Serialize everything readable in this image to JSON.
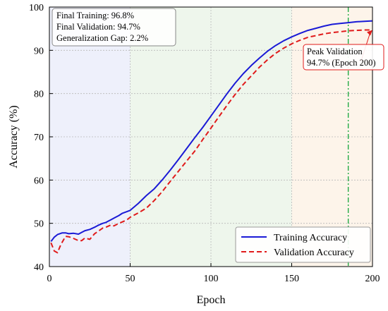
{
  "chart_data": {
    "type": "line",
    "xlabel": "Epoch",
    "ylabel": "Accuracy (%)",
    "xlim": [
      0,
      200
    ],
    "ylim": [
      40,
      100
    ],
    "xticks": [
      0,
      50,
      100,
      150,
      200
    ],
    "yticks": [
      40,
      50,
      60,
      70,
      80,
      90,
      100
    ],
    "grid": true,
    "legend_position": "bottom-right",
    "phases": [
      {
        "from": 0,
        "to": 50,
        "color": "#eef0fb"
      },
      {
        "from": 50,
        "to": 150,
        "color": "#eef6ec"
      },
      {
        "from": 150,
        "to": 200,
        "color": "#fdf4ea"
      }
    ],
    "vline": {
      "x": 185,
      "color": "#22aa44"
    },
    "series": [
      {
        "name": "Training Accuracy",
        "color": "#1a1ad6",
        "dash": "solid",
        "x": [
          1,
          3,
          5,
          8,
          10,
          12,
          15,
          18,
          20,
          22,
          25,
          28,
          30,
          33,
          35,
          38,
          40,
          43,
          45,
          48,
          50,
          55,
          60,
          65,
          70,
          75,
          80,
          85,
          90,
          95,
          100,
          105,
          110,
          115,
          120,
          125,
          130,
          135,
          140,
          145,
          150,
          155,
          160,
          165,
          170,
          175,
          180,
          185,
          190,
          195,
          200
        ],
        "values": [
          45.8,
          46.8,
          47.4,
          47.8,
          47.8,
          47.6,
          47.7,
          47.5,
          47.9,
          48.3,
          48.6,
          49.1,
          49.5,
          50.0,
          50.2,
          50.8,
          51.2,
          51.8,
          52.3,
          52.7,
          53.0,
          54.6,
          56.4,
          58.0,
          60.1,
          62.4,
          64.8,
          67.3,
          69.8,
          72.2,
          74.8,
          77.4,
          80.0,
          82.4,
          84.6,
          86.5,
          88.2,
          89.8,
          91.1,
          92.2,
          93.1,
          93.9,
          94.6,
          95.1,
          95.6,
          96.0,
          96.2,
          96.4,
          96.6,
          96.7,
          96.8
        ]
      },
      {
        "name": "Validation Accuracy",
        "color": "#e01b1b",
        "dash": "dashed",
        "x": [
          1,
          3,
          5,
          7,
          10,
          12,
          15,
          18,
          20,
          22,
          25,
          28,
          30,
          33,
          35,
          38,
          40,
          43,
          45,
          48,
          50,
          55,
          60,
          65,
          70,
          75,
          80,
          85,
          90,
          95,
          100,
          105,
          110,
          115,
          120,
          125,
          130,
          135,
          140,
          145,
          150,
          155,
          160,
          165,
          170,
          175,
          180,
          185,
          190,
          195,
          200
        ],
        "values": [
          45.5,
          43.6,
          43.2,
          45.0,
          47.0,
          46.9,
          46.5,
          46.0,
          46.0,
          46.6,
          46.3,
          47.6,
          48.1,
          48.9,
          49.1,
          49.6,
          49.4,
          50.0,
          50.3,
          50.8,
          51.4,
          52.4,
          53.5,
          55.3,
          57.4,
          59.8,
          62.1,
          64.4,
          66.7,
          69.4,
          72.0,
          74.7,
          77.3,
          79.8,
          82.1,
          84.1,
          86.1,
          87.8,
          89.3,
          90.5,
          91.5,
          92.3,
          93.0,
          93.4,
          93.8,
          94.1,
          94.3,
          94.5,
          94.6,
          94.7,
          94.7
        ]
      }
    ],
    "stats_box": [
      "Final Training: 96.8%",
      "Final Validation: 94.7%",
      "Generalization Gap: 2.2%"
    ],
    "peak_annotation": {
      "lines": [
        "Peak Validation",
        "94.7% (Epoch 200)"
      ],
      "x": 200,
      "y": 94.7
    }
  }
}
